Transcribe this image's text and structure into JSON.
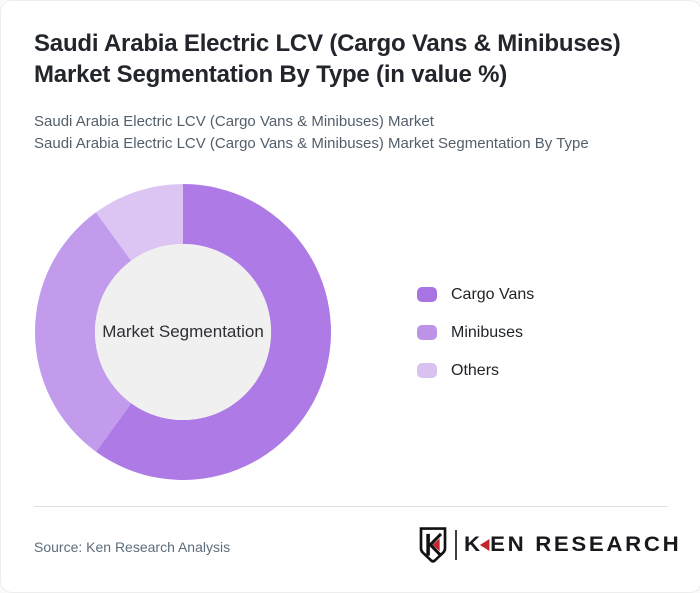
{
  "header": {
    "title_full": "Saudi Arabia Electric LCV (Cargo Vans & Minibuses) Market Segmentation By Type (in value %)",
    "title_lines": [
      "Saudi Arabia Electric LCV (Cargo Vans & Minibuses)",
      "Market Segmentation By Type (in value %)"
    ],
    "subtitle_lines": [
      "Saudi Arabia Electric LCV (Cargo Vans & Minibuses) Market",
      "Saudi Arabia Electric LCV (Cargo Vans & Minibuses) Market Segmentation By Type"
    ]
  },
  "chart_data": {
    "type": "pie",
    "variant": "donut",
    "title": "Saudi Arabia Electric LCV (Cargo Vans & Minibuses) Market Segmentation By Type (in value %)",
    "categories": [
      "Cargo Vans",
      "Minibuses",
      "Others"
    ],
    "values": [
      60,
      30,
      10
    ],
    "unit": "value %",
    "colors": [
      "#ae7ae6",
      "#c29bec",
      "#ddc5f3"
    ],
    "legend_colors": [
      "#a873e2",
      "#bd93e8",
      "#d9c2f0"
    ],
    "start_angle_deg": 0,
    "direction": "clockwise",
    "inner_radius_ratio": 0.595,
    "center_label": "Market Segmentation",
    "center_fill": "#f0f0f0",
    "legend_position": "right",
    "data_labels_shown": false
  },
  "footer": {
    "source_label": "Source: Ken Research Analysis",
    "brand": {
      "emblem_letter": "K",
      "word_k": "K",
      "word_rest": "EN RESEARCH",
      "full_name": "KEN RESEARCH",
      "accent_color": "#c1272d",
      "ink_color": "#17191c"
    }
  }
}
